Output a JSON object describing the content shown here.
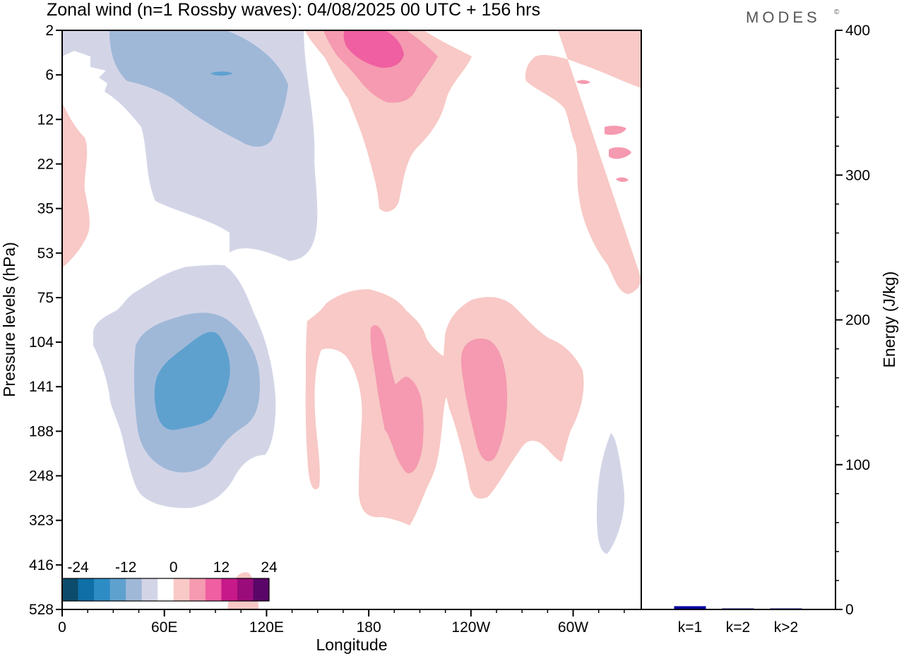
{
  "title": "Zonal wind (n=1 Rossby waves):  04/08/2025  00 UTC  + 156 hrs",
  "brand": "MODES",
  "brand_mark": "©",
  "chart_data": [
    {
      "type": "heatmap",
      "title": "Zonal wind (n=1 Rossby waves)",
      "xlabel": "Longitude",
      "ylabel": "Pressure levels (hPa)",
      "x_ticks": [
        "0",
        "60E",
        "120E",
        "180",
        "120W",
        "60W"
      ],
      "x_tick_values": [
        0,
        60,
        120,
        180,
        240,
        300
      ],
      "xlim": [
        0,
        340
      ],
      "y_ticks": [
        "2",
        "6",
        "12",
        "22",
        "35",
        "53",
        "75",
        "104",
        "141",
        "188",
        "248",
        "323",
        "416",
        "528"
      ],
      "colorbar": {
        "labels": [
          "-24",
          "-12",
          "0",
          "12",
          "24"
        ],
        "colors": [
          "#0c4b6b",
          "#0f6fa6",
          "#2d8cc4",
          "#5ea1cf",
          "#a0b8d8",
          "#d3d5e7",
          "#ffffff",
          "#f8c9c6",
          "#f59ab0",
          "#ef5fa1",
          "#c7198a",
          "#9a0c7a",
          "#5a0669"
        ]
      },
      "contour_levels": [
        -12,
        -8,
        -4,
        4,
        8,
        12
      ],
      "features": [
        {
          "sign": "negative",
          "level": -4,
          "region": "stratosphere 20E-150E, 2-53 hPa"
        },
        {
          "sign": "negative",
          "level": -8,
          "region": "stratosphere 30E-130E, 2-22 hPa"
        },
        {
          "sign": "negative",
          "level": -12,
          "region": "core near 90E, 6 hPa"
        },
        {
          "sign": "positive",
          "level": 12,
          "region": "stratosphere near 180-160W, 2-12 hPa"
        },
        {
          "sign": "positive",
          "level": 4,
          "region": "near 0 and 60W-30W, 2-75 hPa"
        },
        {
          "sign": "negative",
          "level": -12,
          "region": "troposphere near 65E, 104-188 hPa"
        },
        {
          "sign": "positive",
          "level": 8,
          "region": "troposphere 160W-100W, 104-248 hPa"
        }
      ]
    },
    {
      "type": "bar",
      "categories": [
        "k=1",
        "k=2",
        "k>2"
      ],
      "values": [
        2,
        0.3,
        0.3
      ],
      "ylabel": "Energy (J/kg)",
      "ylim": [
        0,
        400
      ],
      "y_ticks": [
        "0",
        "100",
        "200",
        "300",
        "400"
      ],
      "bar_color": "#0000a0"
    }
  ]
}
